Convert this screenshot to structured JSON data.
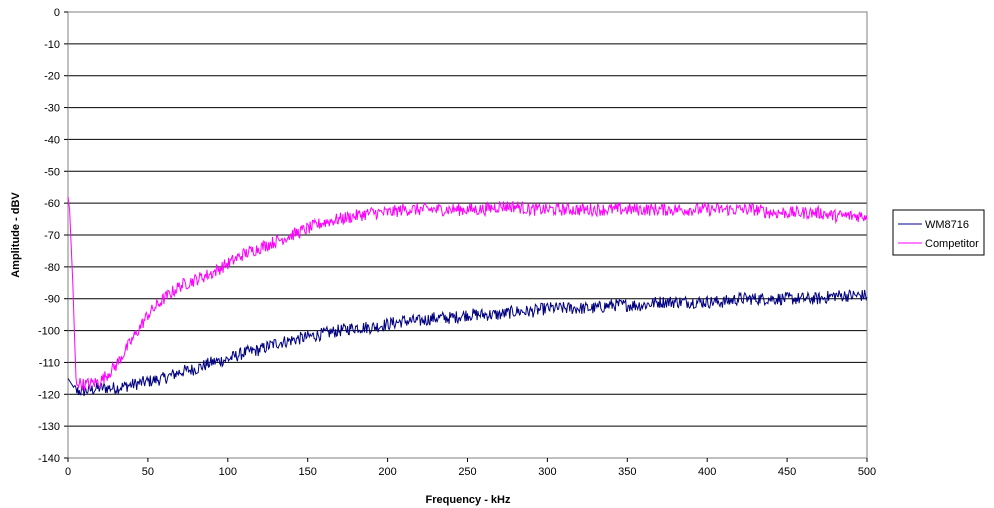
{
  "chart_data": {
    "type": "line",
    "title": "",
    "xlabel": "Frequency - kHz",
    "ylabel": "Amplitude - dBV",
    "xlim": [
      0,
      500
    ],
    "ylim": [
      -140,
      0
    ],
    "x_ticks": [
      0,
      50,
      100,
      150,
      200,
      250,
      300,
      350,
      400,
      450,
      500
    ],
    "y_ticks": [
      0,
      -10,
      -20,
      -30,
      -40,
      -50,
      -60,
      -70,
      -80,
      -90,
      -100,
      -110,
      -120,
      -130,
      -140
    ],
    "grid": "horizontal",
    "legend_position": "right",
    "series": [
      {
        "name": "WM8716",
        "color": "#000080",
        "x": [
          0,
          5,
          10,
          20,
          30,
          40,
          50,
          60,
          70,
          80,
          90,
          100,
          110,
          120,
          130,
          140,
          150,
          160,
          170,
          180,
          190,
          200,
          210,
          220,
          230,
          240,
          250,
          260,
          270,
          280,
          290,
          300,
          310,
          320,
          330,
          340,
          350,
          360,
          370,
          380,
          390,
          400,
          410,
          420,
          430,
          440,
          450,
          460,
          470,
          480,
          490,
          500
        ],
        "values": [
          -115,
          -119,
          -119,
          -118,
          -118,
          -117,
          -116,
          -115,
          -113,
          -112,
          -110,
          -109,
          -107,
          -106,
          -104,
          -103,
          -102,
          -101,
          -100,
          -99,
          -99,
          -98,
          -97,
          -97,
          -96,
          -96,
          -95,
          -95,
          -95,
          -94,
          -94,
          -93,
          -93,
          -93,
          -93,
          -92,
          -92,
          -92,
          -91,
          -91,
          -91,
          -91,
          -91,
          -90,
          -90,
          -90,
          -90,
          -90,
          -90,
          -89,
          -89,
          -89
        ]
      },
      {
        "name": "Competitor",
        "color": "#ff00ff",
        "x": [
          0,
          1,
          3,
          5,
          10,
          20,
          30,
          40,
          50,
          60,
          70,
          80,
          90,
          100,
          110,
          120,
          130,
          140,
          150,
          160,
          170,
          180,
          190,
          200,
          210,
          220,
          230,
          240,
          250,
          260,
          270,
          280,
          290,
          300,
          310,
          320,
          330,
          340,
          350,
          360,
          370,
          380,
          390,
          400,
          410,
          420,
          430,
          440,
          450,
          460,
          470,
          480,
          490,
          500
        ],
        "values": [
          -58,
          -62,
          -85,
          -116,
          -117,
          -116,
          -111,
          -103,
          -95,
          -90,
          -86,
          -84,
          -82,
          -79,
          -76,
          -74,
          -72,
          -70,
          -68,
          -66,
          -65,
          -64,
          -63,
          -63,
          -62,
          -62,
          -62,
          -62,
          -62,
          -62,
          -61,
          -61,
          -62,
          -62,
          -62,
          -62,
          -62,
          -62,
          -62,
          -62,
          -62,
          -62,
          -62,
          -62,
          -62,
          -62,
          -62,
          -63,
          -63,
          -63,
          -63,
          -64,
          -64,
          -64
        ]
      }
    ]
  }
}
